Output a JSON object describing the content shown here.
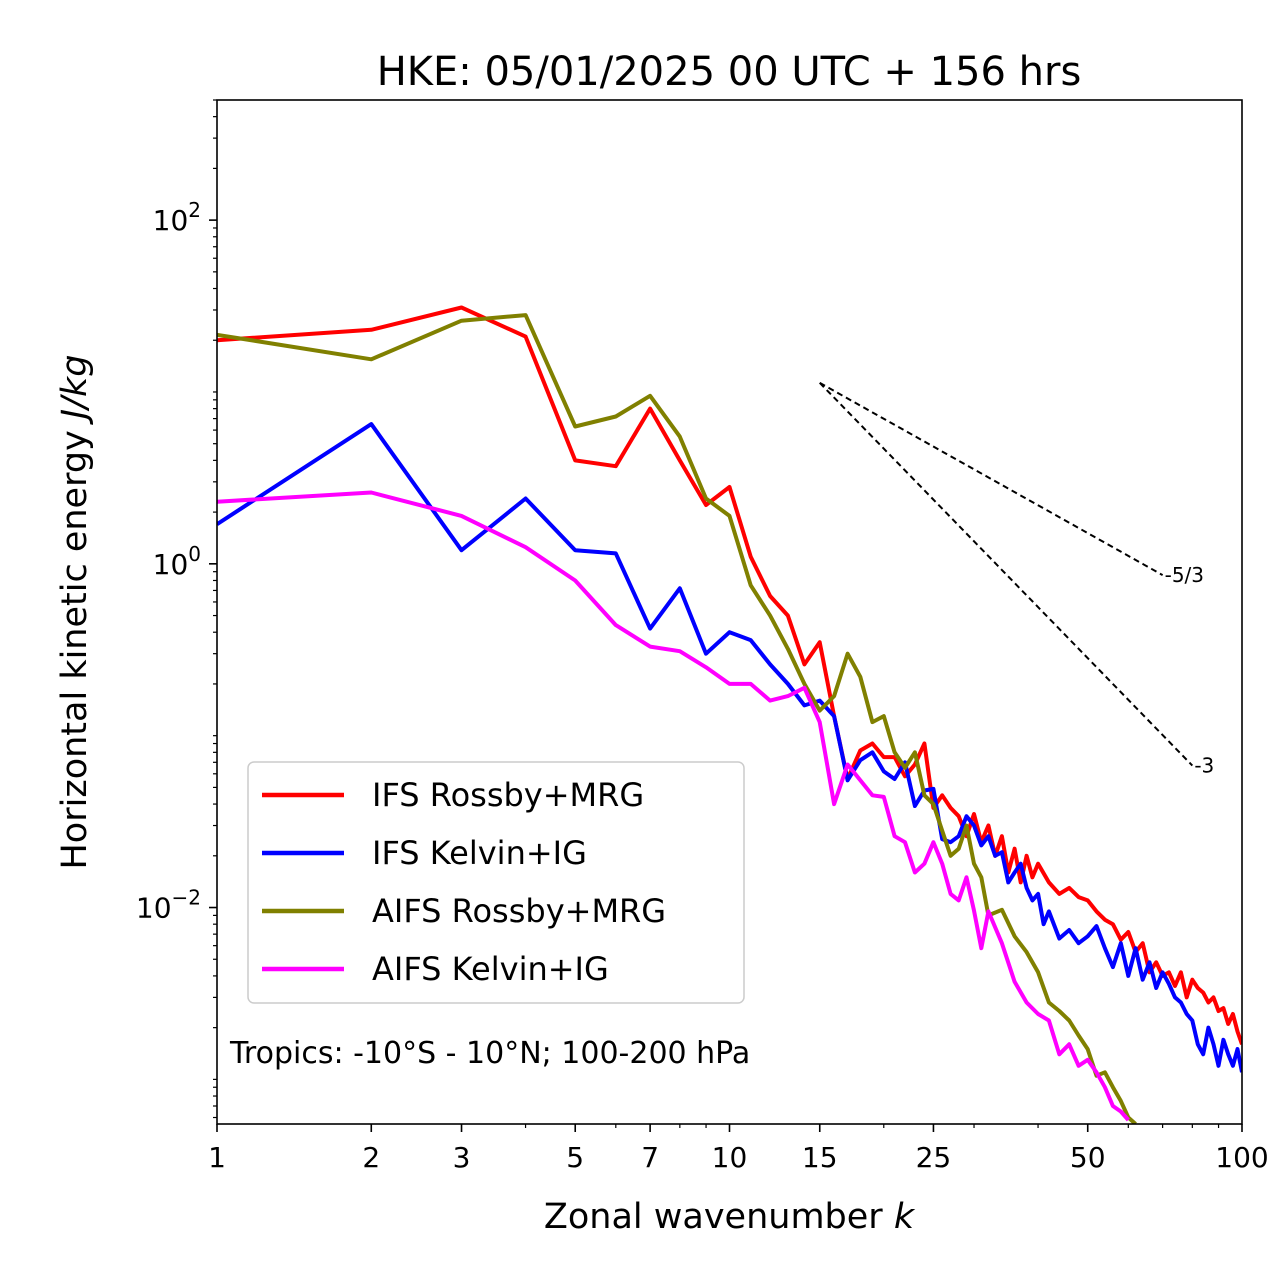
{
  "chart_data": {
    "type": "line",
    "title": "HKE: 05/01/2025 00 UTC + 156 hrs",
    "xlabel": "Zonal wavenumber ",
    "xlabel_italic": "k",
    "ylabel": "Horizontal kinetic energy ",
    "ylabel_italic": "J/kg",
    "x_scale": "log",
    "y_scale": "log",
    "xlim": [
      1,
      100
    ],
    "ylim": [
      0.00055,
      500
    ],
    "x_ticks": [
      {
        "value": 1,
        "label": "1"
      },
      {
        "value": 2,
        "label": "2"
      },
      {
        "value": 3,
        "label": "3"
      },
      {
        "value": 5,
        "label": "5"
      },
      {
        "value": 7,
        "label": "7"
      },
      {
        "value": 10,
        "label": "10"
      },
      {
        "value": 15,
        "label": "15"
      },
      {
        "value": 25,
        "label": "25"
      },
      {
        "value": 50,
        "label": "50"
      },
      {
        "value": 100,
        "label": "100"
      }
    ],
    "y_ticks": [
      {
        "value": 0.01,
        "base": "10",
        "exp": "−2"
      },
      {
        "value": 1,
        "base": "10",
        "exp": "0"
      },
      {
        "value": 100,
        "base": "10",
        "exp": "2"
      }
    ],
    "grid": false,
    "legend_position": "lower-left",
    "annotation": "Tropics: -10°S - 10°N; 100-200 hPa",
    "reference_lines": [
      {
        "label": "-5/3",
        "x": [
          15,
          70
        ],
        "y": [
          11.3,
          0.86
        ]
      },
      {
        "label": "-3",
        "x": [
          15,
          80
        ],
        "y": [
          11.3,
          0.067
        ]
      }
    ],
    "series": [
      {
        "name": "IFS Rossby+MRG",
        "color": "#ff0000",
        "points": [
          [
            1,
            20
          ],
          [
            2,
            23
          ],
          [
            3,
            31
          ],
          [
            4,
            21
          ],
          [
            5,
            4
          ],
          [
            6,
            3.7
          ],
          [
            7,
            8
          ],
          [
            8,
            4
          ],
          [
            9,
            2.2
          ],
          [
            10,
            2.8
          ],
          [
            11,
            1.1
          ],
          [
            12,
            0.65
          ],
          [
            13,
            0.5
          ],
          [
            14,
            0.26
          ],
          [
            15,
            0.35
          ],
          [
            16,
            0.13
          ],
          [
            17,
            0.056
          ],
          [
            18,
            0.082
          ],
          [
            19,
            0.09
          ],
          [
            20,
            0.075
          ],
          [
            21,
            0.075
          ],
          [
            22,
            0.058
          ],
          [
            23,
            0.068
          ],
          [
            24,
            0.09
          ],
          [
            25,
            0.038
          ],
          [
            26,
            0.045
          ],
          [
            27,
            0.038
          ],
          [
            28,
            0.034
          ],
          [
            29,
            0.026
          ],
          [
            30,
            0.035
          ],
          [
            31,
            0.024
          ],
          [
            32,
            0.03
          ],
          [
            33,
            0.02
          ],
          [
            34,
            0.026
          ],
          [
            35,
            0.016
          ],
          [
            36,
            0.022
          ],
          [
            37,
            0.014
          ],
          [
            38,
            0.02
          ],
          [
            39,
            0.015
          ],
          [
            40,
            0.018
          ],
          [
            42,
            0.014
          ],
          [
            44,
            0.012
          ],
          [
            46,
            0.013
          ],
          [
            48,
            0.0115
          ],
          [
            50,
            0.011
          ],
          [
            52,
            0.0095
          ],
          [
            54,
            0.0085
          ],
          [
            56,
            0.008
          ],
          [
            58,
            0.0065
          ],
          [
            60,
            0.0072
          ],
          [
            62,
            0.0055
          ],
          [
            64,
            0.0062
          ],
          [
            66,
            0.0042
          ],
          [
            68,
            0.0048
          ],
          [
            70,
            0.004
          ],
          [
            72,
            0.0042
          ],
          [
            74,
            0.0035
          ],
          [
            76,
            0.0042
          ],
          [
            78,
            0.003
          ],
          [
            80,
            0.0038
          ],
          [
            82,
            0.0034
          ],
          [
            84,
            0.0032
          ],
          [
            86,
            0.0028
          ],
          [
            88,
            0.003
          ],
          [
            90,
            0.0025
          ],
          [
            92,
            0.0026
          ],
          [
            94,
            0.0021
          ],
          [
            96,
            0.0024
          ],
          [
            98,
            0.0019
          ],
          [
            100,
            0.0016
          ]
        ]
      },
      {
        "name": "IFS Kelvin+IG",
        "color": "#0000ff",
        "points": [
          [
            1,
            1.7
          ],
          [
            2,
            6.5
          ],
          [
            3,
            1.2
          ],
          [
            4,
            2.4
          ],
          [
            5,
            1.2
          ],
          [
            6,
            1.15
          ],
          [
            7,
            0.42
          ],
          [
            8,
            0.72
          ],
          [
            9,
            0.3
          ],
          [
            10,
            0.4
          ],
          [
            11,
            0.36
          ],
          [
            12,
            0.26
          ],
          [
            13,
            0.2
          ],
          [
            14,
            0.15
          ],
          [
            15,
            0.16
          ],
          [
            16,
            0.13
          ],
          [
            17,
            0.055
          ],
          [
            18,
            0.072
          ],
          [
            19,
            0.08
          ],
          [
            20,
            0.062
          ],
          [
            21,
            0.056
          ],
          [
            22,
            0.07
          ],
          [
            23,
            0.039
          ],
          [
            24,
            0.048
          ],
          [
            25,
            0.049
          ],
          [
            26,
            0.025
          ],
          [
            27,
            0.024
          ],
          [
            28,
            0.026
          ],
          [
            29,
            0.034
          ],
          [
            30,
            0.03
          ],
          [
            31,
            0.023
          ],
          [
            32,
            0.026
          ],
          [
            33,
            0.02
          ],
          [
            34,
            0.021
          ],
          [
            35,
            0.014
          ],
          [
            36,
            0.016
          ],
          [
            37,
            0.018
          ],
          [
            38,
            0.013
          ],
          [
            39,
            0.011
          ],
          [
            40,
            0.012
          ],
          [
            41,
            0.008
          ],
          [
            42,
            0.0095
          ],
          [
            44,
            0.0066
          ],
          [
            46,
            0.0074
          ],
          [
            48,
            0.0062
          ],
          [
            50,
            0.0068
          ],
          [
            52,
            0.0078
          ],
          [
            54,
            0.0058
          ],
          [
            56,
            0.0045
          ],
          [
            58,
            0.0062
          ],
          [
            60,
            0.004
          ],
          [
            62,
            0.0058
          ],
          [
            64,
            0.0038
          ],
          [
            66,
            0.0048
          ],
          [
            68,
            0.0034
          ],
          [
            70,
            0.0042
          ],
          [
            72,
            0.0036
          ],
          [
            74,
            0.003
          ],
          [
            76,
            0.0028
          ],
          [
            78,
            0.0024
          ],
          [
            80,
            0.0022
          ],
          [
            82,
            0.0016
          ],
          [
            84,
            0.0014
          ],
          [
            86,
            0.002
          ],
          [
            88,
            0.0016
          ],
          [
            90,
            0.0012
          ],
          [
            92,
            0.0017
          ],
          [
            94,
            0.0014
          ],
          [
            96,
            0.0012
          ],
          [
            98,
            0.0015
          ],
          [
            100,
            0.0011
          ]
        ]
      },
      {
        "name": "AIFS Rossby+MRG",
        "color": "#808000",
        "points": [
          [
            1,
            21.5
          ],
          [
            2,
            15.5
          ],
          [
            3,
            26
          ],
          [
            4,
            28
          ],
          [
            5,
            6.3
          ],
          [
            6,
            7.2
          ],
          [
            7,
            9.5
          ],
          [
            8,
            5.5
          ],
          [
            9,
            2.4
          ],
          [
            10,
            1.9
          ],
          [
            11,
            0.75
          ],
          [
            12,
            0.5
          ],
          [
            13,
            0.32
          ],
          [
            14,
            0.2
          ],
          [
            15,
            0.14
          ],
          [
            16,
            0.17
          ],
          [
            17,
            0.3
          ],
          [
            18,
            0.22
          ],
          [
            19,
            0.12
          ],
          [
            20,
            0.13
          ],
          [
            21,
            0.08
          ],
          [
            22,
            0.065
          ],
          [
            23,
            0.08
          ],
          [
            24,
            0.045
          ],
          [
            25,
            0.04
          ],
          [
            26,
            0.028
          ],
          [
            27,
            0.02
          ],
          [
            28,
            0.022
          ],
          [
            29,
            0.03
          ],
          [
            30,
            0.018
          ],
          [
            31,
            0.015
          ],
          [
            32,
            0.009
          ],
          [
            34,
            0.0097
          ],
          [
            36,
            0.0068
          ],
          [
            38,
            0.0055
          ],
          [
            40,
            0.0042
          ],
          [
            42,
            0.0028
          ],
          [
            44,
            0.0025
          ],
          [
            46,
            0.0022
          ],
          [
            48,
            0.0018
          ],
          [
            50,
            0.0015
          ],
          [
            52,
            0.00105
          ],
          [
            54,
            0.0011
          ],
          [
            56,
            0.0009
          ],
          [
            58,
            0.00075
          ],
          [
            60,
            0.0006
          ],
          [
            62,
            0.00055
          ]
        ]
      },
      {
        "name": "AIFS Kelvin+IG",
        "color": "#ff00ff",
        "points": [
          [
            1,
            2.3
          ],
          [
            2,
            2.6
          ],
          [
            3,
            1.9
          ],
          [
            4,
            1.25
          ],
          [
            5,
            0.8
          ],
          [
            6,
            0.44
          ],
          [
            7,
            0.33
          ],
          [
            8,
            0.31
          ],
          [
            9,
            0.25
          ],
          [
            10,
            0.2
          ],
          [
            11,
            0.2
          ],
          [
            12,
            0.16
          ],
          [
            13,
            0.17
          ],
          [
            14,
            0.19
          ],
          [
            15,
            0.12
          ],
          [
            16,
            0.04
          ],
          [
            17,
            0.068
          ],
          [
            18,
            0.055
          ],
          [
            19,
            0.045
          ],
          [
            20,
            0.044
          ],
          [
            21,
            0.026
          ],
          [
            22,
            0.024
          ],
          [
            23,
            0.016
          ],
          [
            24,
            0.018
          ],
          [
            25,
            0.024
          ],
          [
            26,
            0.018
          ],
          [
            27,
            0.012
          ],
          [
            28,
            0.011
          ],
          [
            29,
            0.015
          ],
          [
            30,
            0.0096
          ],
          [
            31,
            0.0058
          ],
          [
            32,
            0.0095
          ],
          [
            34,
            0.0062
          ],
          [
            36,
            0.0037
          ],
          [
            38,
            0.0028
          ],
          [
            40,
            0.0024
          ],
          [
            42,
            0.0022
          ],
          [
            44,
            0.0014
          ],
          [
            46,
            0.0016
          ],
          [
            48,
            0.0012
          ],
          [
            50,
            0.0013
          ],
          [
            52,
            0.0011
          ],
          [
            54,
            0.0009
          ],
          [
            56,
            0.0007
          ],
          [
            58,
            0.00065
          ],
          [
            60,
            0.00058
          ]
        ]
      }
    ]
  }
}
